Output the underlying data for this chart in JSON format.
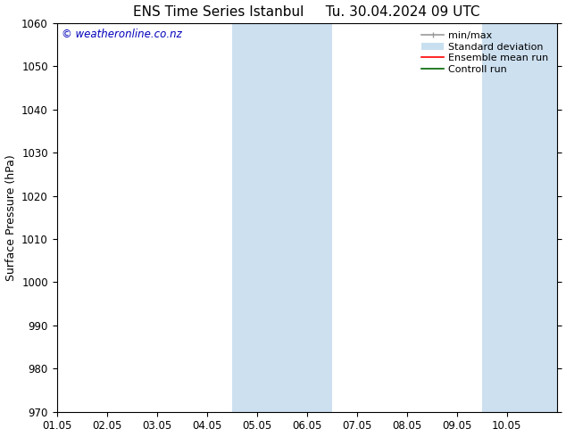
{
  "title_left": "ENS Time Series Istanbul",
  "title_right": "Tu. 30.04.2024 09 UTC",
  "ylabel": "Surface Pressure (hPa)",
  "ylim": [
    970,
    1060
  ],
  "yticks": [
    970,
    980,
    990,
    1000,
    1010,
    1020,
    1030,
    1040,
    1050,
    1060
  ],
  "xlim_start": 0,
  "xlim_end": 10,
  "xtick_labels": [
    "01.05",
    "02.05",
    "03.05",
    "04.05",
    "05.05",
    "06.05",
    "07.05",
    "08.05",
    "09.05",
    "10.05"
  ],
  "xtick_positions": [
    0,
    1,
    2,
    3,
    4,
    5,
    6,
    7,
    8,
    9
  ],
  "shaded_regions": [
    {
      "xstart": 3.5,
      "xend": 5.5,
      "color": "#cde0f0"
    },
    {
      "xstart": 8.5,
      "xend": 10.0,
      "color": "#cde0f0"
    }
  ],
  "watermark": "© weatheronline.co.nz",
  "watermark_color": "#0000bb",
  "bg_color": "#ffffff",
  "legend_items": [
    {
      "label": "min/max",
      "color": "#999999",
      "lw": 1.2
    },
    {
      "label": "Standard deviation",
      "color": "#c8dff0",
      "lw": 8
    },
    {
      "label": "Ensemble mean run",
      "color": "#ff0000",
      "lw": 1.2
    },
    {
      "label": "Controll run",
      "color": "#006600",
      "lw": 1.2
    }
  ],
  "title_fontsize": 11,
  "ylabel_fontsize": 9,
  "tick_fontsize": 8.5,
  "legend_fontsize": 8,
  "watermark_fontsize": 8.5
}
